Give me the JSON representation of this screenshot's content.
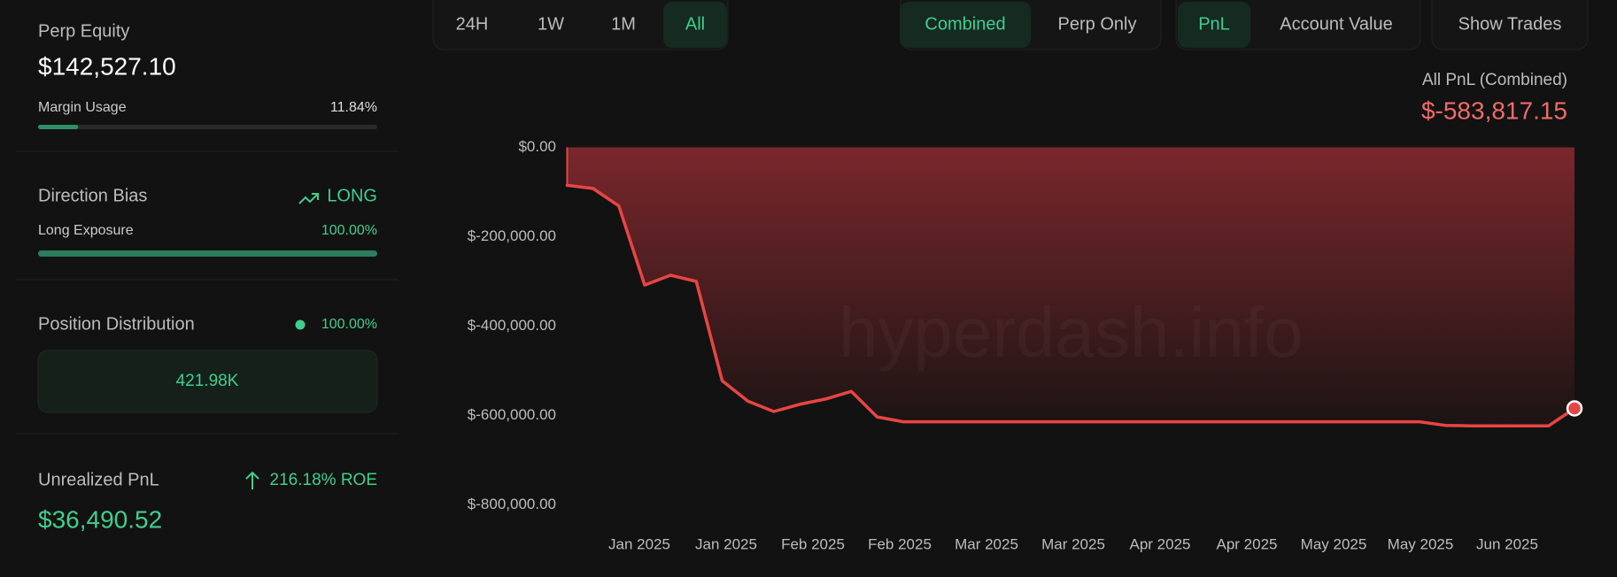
{
  "sidebar": {
    "perp_equity": {
      "label": "Perp Equity",
      "value": "$142,527.10"
    },
    "margin_usage": {
      "label": "Margin Usage",
      "value": 11.84,
      "value_label": "11.84%"
    },
    "direction_bias": {
      "label": "Direction Bias",
      "value": "LONG"
    },
    "long_exposure": {
      "label": "Long Exposure",
      "value": 100,
      "value_label": "100.00%"
    },
    "position_distribution": {
      "label": "Position Distribution",
      "share": "100.00%",
      "total": "421.98K"
    },
    "unrealized_pnl": {
      "label": "Unrealized PnL",
      "roe": "216.18% ROE",
      "value": "$36,490.52"
    }
  },
  "toolbar": {
    "ranges": [
      "24H",
      "1W",
      "1M",
      "All"
    ],
    "active_range": 3,
    "modes": [
      "Combined",
      "Perp Only"
    ],
    "active_mode": 0,
    "metrics": [
      "PnL",
      "Account Value"
    ],
    "active_metric": 0,
    "show_trades": "Show Trades"
  },
  "chart_data": {
    "type": "area",
    "title": "All PnL (Combined)",
    "subtitle": "$-583,817.15",
    "watermark": "hyperdash.info",
    "x_labels": [
      "Jan 2025",
      "Jan 2025",
      "Feb 2025",
      "Feb 2025",
      "Mar 2025",
      "Mar 2025",
      "Apr 2025",
      "Apr 2025",
      "May 2025",
      "May 2025",
      "Jun 2025"
    ],
    "color": "#e84545",
    "values": [
      -85000,
      -92000,
      -131000,
      -308000,
      -286000,
      -300000,
      -522000,
      -568000,
      -591000,
      -575000,
      -563000,
      -546000,
      -603000,
      -614000,
      -614000,
      -614000,
      -614000,
      -614000,
      -614000,
      -614000,
      -614000,
      -614000,
      -614000,
      -614000,
      -614000,
      -614000,
      -614000,
      -614000,
      -614000,
      -614000,
      -614000,
      -614000,
      -614000,
      -614000,
      -622000,
      -623000,
      -623000,
      -623000,
      -623000,
      -584000
    ],
    "ylim": [
      -800000,
      0
    ],
    "yticks": [
      {
        "value": 0,
        "label": "$0.00"
      },
      {
        "value": -200000,
        "label": "$-200,000.00"
      },
      {
        "value": -400000,
        "label": "$-400,000.00"
      },
      {
        "value": -600000,
        "label": "$-600,000.00"
      },
      {
        "value": -800000,
        "label": "$-800,000.00"
      }
    ],
    "grid": false
  }
}
